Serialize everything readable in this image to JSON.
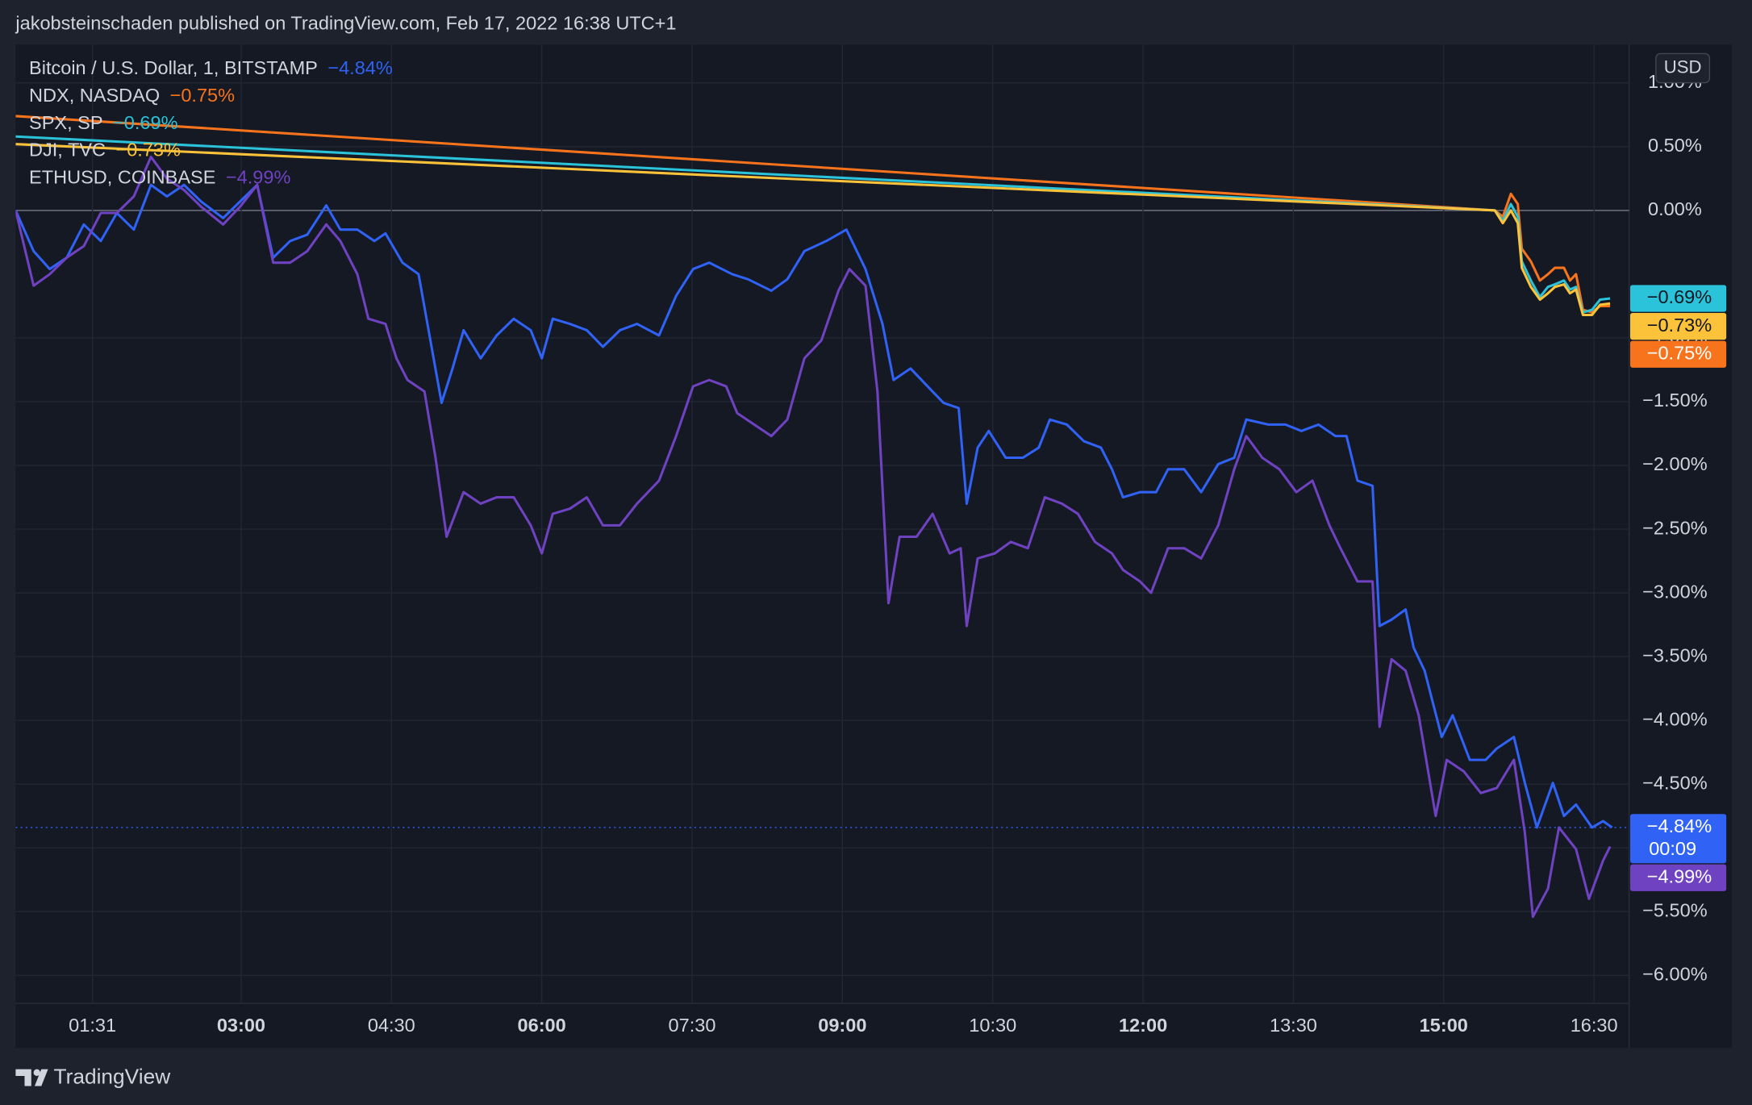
{
  "chart_data": {
    "type": "line",
    "header_text": "jakobsteinschaden published on TradingView.com, Feb 17, 2022 16:38 UTC+1",
    "brand": "TradingView",
    "currency": "USD",
    "countdown": "00:09",
    "xlim": [
      0.75,
      16.85
    ],
    "xticks": [
      {
        "value": 1.5167,
        "label": "01:31"
      },
      {
        "value": 3,
        "label": "03:00"
      },
      {
        "value": 4.5,
        "label": "04:30"
      },
      {
        "value": 6,
        "label": "06:00"
      },
      {
        "value": 7.5,
        "label": "07:30"
      },
      {
        "value": 9,
        "label": "09:00"
      },
      {
        "value": 10.5,
        "label": "10:30"
      },
      {
        "value": 12,
        "label": "12:00"
      },
      {
        "value": 13.5,
        "label": "13:30"
      },
      {
        "value": 15,
        "label": "15:00"
      },
      {
        "value": 16.5,
        "label": "16:30"
      }
    ],
    "ylim": [
      -6.57,
      1.3
    ],
    "yticks": [
      {
        "value": 1,
        "label": "1.00%"
      },
      {
        "value": 0.5,
        "label": "0.50%"
      },
      {
        "value": 0,
        "label": "0.00%"
      },
      {
        "value": -1,
        "label": "−1.00%"
      },
      {
        "value": -1.5,
        "label": "−1.50%"
      },
      {
        "value": -2,
        "label": "−2.00%"
      },
      {
        "value": -2.5,
        "label": "−2.50%"
      },
      {
        "value": -3,
        "label": "−3.00%"
      },
      {
        "value": -3.5,
        "label": "−3.50%"
      },
      {
        "value": -4,
        "label": "−4.00%"
      },
      {
        "value": -4.5,
        "label": "−4.50%"
      },
      {
        "value": -5,
        "label": "−5.00%"
      },
      {
        "value": -5.5,
        "label": "−5.50%"
      },
      {
        "value": -6,
        "label": "−6.00%"
      }
    ],
    "grid": true,
    "series": [
      {
        "name": "Bitcoin / U.S. Dollar, 1, BITSTAMP",
        "color": "#2f62f5",
        "last_label": "−4.84%",
        "x": [
          0.75,
          0.93,
          1.09,
          1.26,
          1.43,
          1.6,
          1.76,
          1.93,
          2.1,
          2.26,
          2.43,
          2.6,
          2.82,
          2.99,
          3.16,
          3.32,
          3.49,
          3.66,
          3.85,
          3.99,
          4.16,
          4.33,
          4.44,
          4.61,
          4.77,
          4.88,
          5.0,
          5.11,
          5.22,
          5.39,
          5.55,
          5.72,
          5.89,
          6.0,
          6.11,
          6.28,
          6.45,
          6.61,
          6.78,
          6.95,
          7.17,
          7.34,
          7.51,
          7.67,
          7.9,
          8.06,
          8.29,
          8.45,
          8.62,
          8.84,
          9.04,
          9.23,
          9.4,
          9.51,
          9.68,
          9.85,
          10.01,
          10.16,
          10.24,
          10.35,
          10.46,
          10.63,
          10.8,
          10.96,
          11.07,
          11.24,
          11.41,
          11.58,
          11.69,
          11.8,
          11.97,
          12.13,
          12.25,
          12.41,
          12.58,
          12.75,
          12.91,
          13.03,
          13.25,
          13.42,
          13.58,
          13.75,
          13.92,
          14.03,
          14.14,
          14.29,
          14.36,
          14.48,
          14.62,
          14.7,
          14.81,
          14.98,
          15.09,
          15.26,
          15.42,
          15.53,
          15.7,
          15.81,
          15.93,
          16.09,
          16.2,
          16.32,
          16.48,
          16.59,
          16.68
        ],
        "values": [
          0,
          -0.32,
          -0.46,
          -0.37,
          -0.11,
          -0.24,
          -0.02,
          -0.15,
          0.2,
          0.11,
          0.2,
          0.07,
          -0.06,
          0.07,
          0.2,
          -0.37,
          -0.24,
          -0.19,
          0.04,
          -0.15,
          -0.15,
          -0.24,
          -0.18,
          -0.41,
          -0.5,
          -0.98,
          -1.51,
          -1.24,
          -0.94,
          -1.16,
          -0.98,
          -0.85,
          -0.94,
          -1.16,
          -0.85,
          -0.89,
          -0.94,
          -1.07,
          -0.94,
          -0.89,
          -0.98,
          -0.67,
          -0.46,
          -0.41,
          -0.5,
          -0.54,
          -0.63,
          -0.54,
          -0.32,
          -0.24,
          -0.15,
          -0.46,
          -0.89,
          -1.33,
          -1.24,
          -1.38,
          -1.51,
          -1.55,
          -2.3,
          -1.86,
          -1.73,
          -1.94,
          -1.94,
          -1.86,
          -1.64,
          -1.68,
          -1.81,
          -1.86,
          -2.03,
          -2.25,
          -2.21,
          -2.21,
          -2.03,
          -2.03,
          -2.21,
          -1.99,
          -1.94,
          -1.64,
          -1.68,
          -1.68,
          -1.73,
          -1.68,
          -1.77,
          -1.77,
          -2.12,
          -2.16,
          -3.26,
          -3.21,
          -3.13,
          -3.43,
          -3.61,
          -4.13,
          -3.96,
          -4.31,
          -4.31,
          -4.22,
          -4.13,
          -4.49,
          -4.84,
          -4.49,
          -4.75,
          -4.66,
          -4.84,
          -4.79,
          -4.84
        ]
      },
      {
        "name": "NDX, NASDAQ",
        "color": "#f7731c",
        "last_label": "−0.75%",
        "x": [
          0.75,
          15.51,
          15.59,
          15.67,
          15.74,
          15.78,
          15.87,
          15.96,
          16.04,
          16.11,
          16.2,
          16.26,
          16.32,
          16.39,
          16.48,
          16.56,
          16.66
        ],
        "values": [
          0.74,
          0,
          -0.05,
          0.13,
          0.05,
          -0.3,
          -0.4,
          -0.55,
          -0.5,
          -0.45,
          -0.45,
          -0.55,
          -0.5,
          -0.78,
          -0.8,
          -0.75,
          -0.75
        ]
      },
      {
        "name": "SPX, SP",
        "color": "#2ac3d9",
        "last_label": "−0.69%",
        "x": [
          0.75,
          15.51,
          15.59,
          15.67,
          15.74,
          15.78,
          15.87,
          15.96,
          16.04,
          16.11,
          16.2,
          16.26,
          16.32,
          16.39,
          16.48,
          16.56,
          16.66
        ],
        "values": [
          0.58,
          0,
          -0.08,
          0.05,
          -0.05,
          -0.4,
          -0.55,
          -0.68,
          -0.6,
          -0.58,
          -0.55,
          -0.62,
          -0.6,
          -0.8,
          -0.78,
          -0.7,
          -0.69
        ]
      },
      {
        "name": "DJI, TVC",
        "color": "#fbc23a",
        "last_label": "−0.73%",
        "x": [
          0.75,
          15.51,
          15.59,
          15.67,
          15.74,
          15.78,
          15.87,
          15.96,
          16.04,
          16.11,
          16.2,
          16.26,
          16.32,
          16.39,
          16.48,
          16.56,
          16.66
        ],
        "values": [
          0.52,
          0,
          -0.1,
          0.0,
          -0.1,
          -0.45,
          -0.6,
          -0.7,
          -0.65,
          -0.6,
          -0.58,
          -0.65,
          -0.62,
          -0.82,
          -0.82,
          -0.74,
          -0.73
        ]
      },
      {
        "name": "ETHUSD, COINBASE",
        "color": "#6f42c1",
        "last_label": "−4.99%",
        "x": [
          0.75,
          0.93,
          1.09,
          1.26,
          1.43,
          1.6,
          1.76,
          1.93,
          2.1,
          2.26,
          2.43,
          2.6,
          2.82,
          2.99,
          3.16,
          3.32,
          3.49,
          3.66,
          3.85,
          3.99,
          4.16,
          4.27,
          4.44,
          4.55,
          4.66,
          4.83,
          4.94,
          5.05,
          5.22,
          5.39,
          5.55,
          5.72,
          5.89,
          6.0,
          6.11,
          6.28,
          6.45,
          6.61,
          6.78,
          6.95,
          7.17,
          7.34,
          7.51,
          7.67,
          7.84,
          7.95,
          8.12,
          8.29,
          8.45,
          8.62,
          8.79,
          8.96,
          9.07,
          9.23,
          9.35,
          9.46,
          9.57,
          9.74,
          9.9,
          10.07,
          10.18,
          10.24,
          10.35,
          10.52,
          10.68,
          10.85,
          11.02,
          11.19,
          11.35,
          11.52,
          11.69,
          11.8,
          11.97,
          12.08,
          12.25,
          12.41,
          12.58,
          12.75,
          12.91,
          13.03,
          13.19,
          13.36,
          13.53,
          13.69,
          13.86,
          13.97,
          14.14,
          14.29,
          14.36,
          14.48,
          14.62,
          14.75,
          14.92,
          15.03,
          15.2,
          15.37,
          15.53,
          15.7,
          15.81,
          15.89,
          16.04,
          16.15,
          16.32,
          16.45,
          16.59,
          16.66
        ],
        "values": [
          0,
          -0.59,
          -0.5,
          -0.37,
          -0.28,
          -0.02,
          -0.02,
          0.11,
          0.42,
          0.25,
          0.16,
          0.03,
          -0.11,
          0.03,
          0.2,
          -0.41,
          -0.41,
          -0.32,
          -0.11,
          -0.24,
          -0.5,
          -0.85,
          -0.89,
          -1.16,
          -1.33,
          -1.42,
          -1.94,
          -2.56,
          -2.21,
          -2.3,
          -2.25,
          -2.25,
          -2.47,
          -2.69,
          -2.38,
          -2.34,
          -2.25,
          -2.47,
          -2.47,
          -2.3,
          -2.12,
          -1.77,
          -1.38,
          -1.33,
          -1.38,
          -1.59,
          -1.68,
          -1.77,
          -1.64,
          -1.16,
          -1.02,
          -0.63,
          -0.46,
          -0.59,
          -1.42,
          -3.08,
          -2.56,
          -2.56,
          -2.38,
          -2.69,
          -2.65,
          -3.26,
          -2.73,
          -2.69,
          -2.6,
          -2.65,
          -2.25,
          -2.3,
          -2.38,
          -2.6,
          -2.69,
          -2.82,
          -2.91,
          -3.0,
          -2.65,
          -2.65,
          -2.73,
          -2.47,
          -2.03,
          -1.77,
          -1.94,
          -2.03,
          -2.21,
          -2.12,
          -2.47,
          -2.65,
          -2.91,
          -2.91,
          -4.05,
          -3.52,
          -3.61,
          -3.96,
          -4.75,
          -4.31,
          -4.4,
          -4.57,
          -4.53,
          -4.31,
          -4.88,
          -5.54,
          -5.32,
          -4.84,
          -5.01,
          -5.4,
          -5.1,
          -4.99
        ]
      }
    ]
  }
}
